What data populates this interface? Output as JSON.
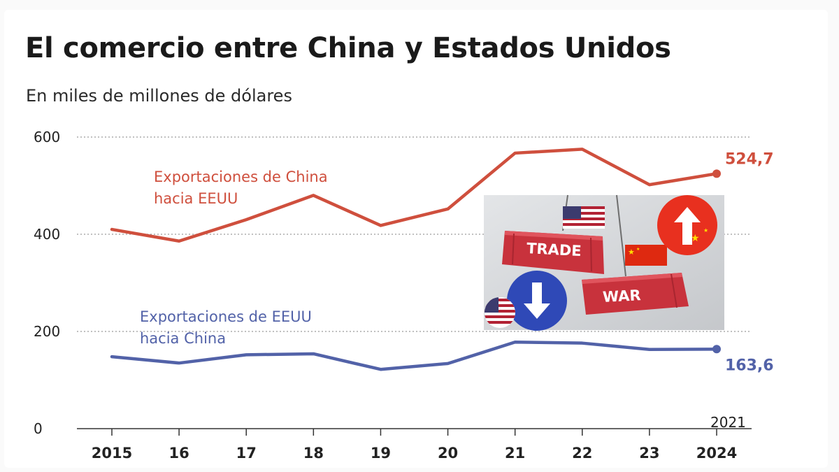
{
  "title": "El comercio entre China y Estados Unidos",
  "subtitle": "En miles de millones de dólares",
  "colors": {
    "china": "#cf4f3d",
    "usa": "#5262a8",
    "grid": "#9a9a9a",
    "axis": "#333333"
  },
  "chart_data": {
    "type": "line",
    "x": [
      "2015",
      "16",
      "17",
      "18",
      "19",
      "20",
      "21",
      "22",
      "23",
      "2024"
    ],
    "series": [
      {
        "name": "Exportaciones de China hacia EEUU",
        "values": [
          410,
          386,
          430,
          480,
          418,
          452,
          567,
          575,
          502,
          524.7
        ]
      },
      {
        "name": "Exportaciones de EEUU hacia China",
        "values": [
          148,
          135,
          152,
          154,
          122,
          134,
          178,
          176,
          163,
          163.6
        ]
      }
    ],
    "end_labels": [
      "524,7",
      "163,6"
    ],
    "yticks": [
      0,
      200,
      400,
      600
    ],
    "ylim": [
      0,
      600
    ],
    "grid": true,
    "annotation": "2021"
  },
  "inset_image": {
    "labels": [
      "TRADE",
      "WAR"
    ],
    "icons": [
      "us-flag-icon",
      "china-flag-icon",
      "arrow-up-icon",
      "arrow-down-icon"
    ]
  }
}
